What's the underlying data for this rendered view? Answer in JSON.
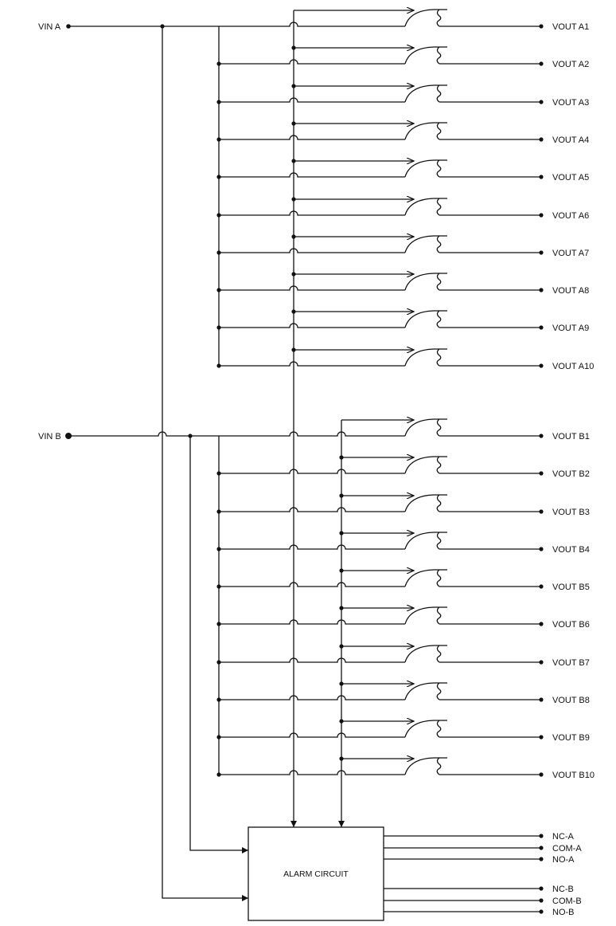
{
  "inputs": {
    "a": "VIN A",
    "b": "VIN B"
  },
  "outputs_a": [
    "VOUT A1",
    "VOUT A2",
    "VOUT A3",
    "VOUT A4",
    "VOUT A5",
    "VOUT A6",
    "VOUT A7",
    "VOUT A8",
    "VOUT A9",
    "VOUT A10"
  ],
  "outputs_b": [
    "VOUT B1",
    "VOUT B2",
    "VOUT B3",
    "VOUT B4",
    "VOUT B5",
    "VOUT B6",
    "VOUT B7",
    "VOUT B8",
    "VOUT B9",
    "VOUT B10"
  ],
  "alarm": {
    "label": "ALARM CIRCUIT",
    "outputs": [
      "NC-A",
      "COM-A",
      "NO-A",
      "NC-B",
      "COM-B",
      "NO-B"
    ]
  },
  "colors": {
    "line": "#111111",
    "background": "#ffffff"
  }
}
